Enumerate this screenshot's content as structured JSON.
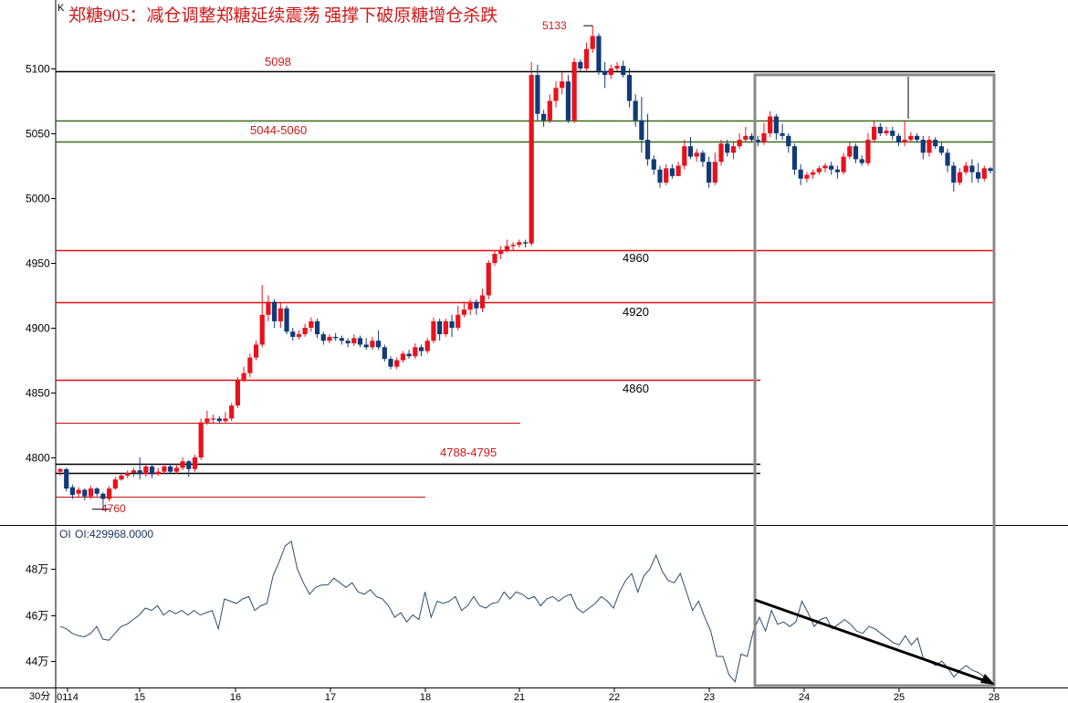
{
  "chart_data": {
    "type": "candlestick",
    "title": "郑糖905：减仓调整郑糖延续震荡 强撑下破原糖增仓杀跌",
    "corner_label": "K",
    "timeframe": "30分",
    "x_ticks": [
      "0114",
      "15",
      "16",
      "17",
      "18",
      "21",
      "22",
      "23",
      "24",
      "25",
      "28"
    ],
    "price_axis": {
      "ticks": [
        4800,
        4850,
        4900,
        4950,
        5000,
        5050,
        5100
      ]
    },
    "high_label": "5133",
    "low_label": "4760",
    "levels": [
      {
        "value": 5098,
        "label": "5098",
        "color": "#000000"
      },
      {
        "value": 5060,
        "label": "",
        "color": "#3c6b1e"
      },
      {
        "value": 5044,
        "label": "5044-5060",
        "color": "#3c6b1e"
      },
      {
        "value": 4960,
        "label": "4960",
        "color": "#e01010"
      },
      {
        "value": 4920,
        "label": "4920",
        "color": "#e01010"
      },
      {
        "value": 4860,
        "label": "4860",
        "color": "#e01010"
      },
      {
        "value": 4827,
        "label": "",
        "color": "#c01010"
      },
      {
        "value": 4795,
        "label": "",
        "color": "#000000"
      },
      {
        "value": 4788,
        "label": "4788-4795",
        "color": "#000000"
      },
      {
        "value": 4770,
        "label": "",
        "color": "#c01010"
      }
    ],
    "candles": [
      [
        4789,
        4791,
        4786,
        4792
      ],
      [
        4791,
        4776,
        4774,
        4792
      ],
      [
        4777,
        4771,
        4768,
        4779
      ],
      [
        4772,
        4775,
        4769,
        4777
      ],
      [
        4775,
        4770,
        4767,
        4776
      ],
      [
        4770,
        4776,
        4768,
        4778
      ],
      [
        4776,
        4772,
        4770,
        4777
      ],
      [
        4772,
        4768,
        4760,
        4773
      ],
      [
        4768,
        4776,
        4766,
        4778
      ],
      [
        4776,
        4783,
        4775,
        4785
      ],
      [
        4783,
        4786,
        4782,
        4788
      ],
      [
        4786,
        4788,
        4784,
        4790
      ],
      [
        4788,
        4790,
        4785,
        4792
      ],
      [
        4790,
        4787,
        4783,
        4800
      ],
      [
        4787,
        4793,
        4785,
        4795
      ],
      [
        4793,
        4787,
        4784,
        4795
      ],
      [
        4787,
        4789,
        4786,
        4792
      ],
      [
        4789,
        4793,
        4787,
        4795
      ],
      [
        4793,
        4789,
        4787,
        4795
      ],
      [
        4789,
        4792,
        4787,
        4795
      ],
      [
        4792,
        4797,
        4790,
        4800
      ],
      [
        4797,
        4791,
        4785,
        4798
      ],
      [
        4791,
        4800,
        4789,
        4802
      ],
      [
        4800,
        4827,
        4798,
        4830
      ],
      [
        4827,
        4830,
        4825,
        4836
      ],
      [
        4830,
        4830,
        4826,
        4833
      ],
      [
        4830,
        4828,
        4826,
        4832
      ],
      [
        4828,
        4830,
        4826,
        4835
      ],
      [
        4830,
        4840,
        4828,
        4842
      ],
      [
        4840,
        4860,
        4838,
        4862
      ],
      [
        4860,
        4865,
        4858,
        4870
      ],
      [
        4865,
        4877,
        4862,
        4880
      ],
      [
        4877,
        4887,
        4875,
        4890
      ],
      [
        4887,
        4910,
        4885,
        4933
      ],
      [
        4910,
        4920,
        4905,
        4925
      ],
      [
        4920,
        4905,
        4900,
        4922
      ],
      [
        4905,
        4915,
        4900,
        4920
      ],
      [
        4915,
        4897,
        4895,
        4917
      ],
      [
        4897,
        4893,
        4890,
        4900
      ],
      [
        4893,
        4895,
        4891,
        4898
      ],
      [
        4895,
        4900,
        4893,
        4903
      ],
      [
        4900,
        4905,
        4897,
        4908
      ],
      [
        4905,
        4895,
        4892,
        4907
      ],
      [
        4895,
        4890,
        4887,
        4897
      ],
      [
        4890,
        4893,
        4888,
        4895
      ],
      [
        4893,
        4892,
        4890,
        4896
      ],
      [
        4892,
        4890,
        4887,
        4894
      ],
      [
        4890,
        4888,
        4885,
        4892
      ],
      [
        4888,
        4892,
        4886,
        4895
      ],
      [
        4892,
        4887,
        4885,
        4894
      ],
      [
        4887,
        4885,
        4883,
        4892
      ],
      [
        4885,
        4890,
        4883,
        4893
      ],
      [
        4890,
        4885,
        4883,
        4898
      ],
      [
        4885,
        4876,
        4874,
        4887
      ],
      [
        4876,
        4870,
        4868,
        4878
      ],
      [
        4870,
        4875,
        4868,
        4877
      ],
      [
        4875,
        4880,
        4873,
        4882
      ],
      [
        4880,
        4878,
        4876,
        4883
      ],
      [
        4878,
        4885,
        4876,
        4888
      ],
      [
        4885,
        4882,
        4878,
        4887
      ],
      [
        4882,
        4890,
        4880,
        4892
      ],
      [
        4890,
        4905,
        4888,
        4908
      ],
      [
        4905,
        4895,
        4890,
        4907
      ],
      [
        4895,
        4905,
        4893,
        4907
      ],
      [
        4905,
        4900,
        4893,
        4910
      ],
      [
        4900,
        4910,
        4898,
        4917
      ],
      [
        4910,
        4914,
        4908,
        4920
      ],
      [
        4914,
        4920,
        4910,
        4922
      ],
      [
        4920,
        4915,
        4910,
        4922
      ],
      [
        4915,
        4925,
        4912,
        4930
      ],
      [
        4925,
        4950,
        4922,
        4952
      ],
      [
        4950,
        4957,
        4948,
        4960
      ],
      [
        4957,
        4960,
        4953,
        4963
      ],
      [
        4960,
        4963,
        4958,
        4968
      ],
      [
        4963,
        4964,
        4960,
        4966
      ],
      [
        4964,
        4966,
        4962,
        4968
      ],
      [
        4966,
        4965,
        4962,
        4968
      ],
      [
        4965,
        5095,
        4963,
        5105
      ],
      [
        5095,
        5065,
        5060,
        5103
      ],
      [
        5065,
        5060,
        5055,
        5068
      ],
      [
        5060,
        5075,
        5058,
        5080
      ],
      [
        5075,
        5085,
        5070,
        5090
      ],
      [
        5085,
        5090,
        5080,
        5097
      ],
      [
        5090,
        5060,
        5058,
        5095
      ],
      [
        5060,
        5105,
        5058,
        5108
      ],
      [
        5105,
        5100,
        5098,
        5107
      ],
      [
        5100,
        5115,
        5098,
        5120
      ],
      [
        5115,
        5125,
        5112,
        5133
      ],
      [
        5125,
        5098,
        5095,
        5127
      ],
      [
        5098,
        5095,
        5085,
        5105
      ],
      [
        5095,
        5100,
        5092,
        5103
      ],
      [
        5100,
        5102,
        5098,
        5105
      ],
      [
        5102,
        5095,
        5093,
        5106
      ],
      [
        5095,
        5075,
        5070,
        5100
      ],
      [
        5075,
        5060,
        5055,
        5080
      ],
      [
        5060,
        5045,
        5035,
        5078
      ],
      [
        5045,
        5030,
        5025,
        5065
      ],
      [
        5030,
        5022,
        5018,
        5033
      ],
      [
        5022,
        5012,
        5008,
        5025
      ],
      [
        5012,
        5023,
        5010,
        5026
      ],
      [
        5023,
        5017,
        5015,
        5026
      ],
      [
        5017,
        5025,
        5020,
        5028
      ],
      [
        5025,
        5040,
        5022,
        5045
      ],
      [
        5040,
        5032,
        5030,
        5047
      ],
      [
        5032,
        5035,
        5028,
        5038
      ],
      [
        5035,
        5028,
        5024,
        5037
      ],
      [
        5028,
        5012,
        5008,
        5032
      ],
      [
        5012,
        5028,
        5010,
        5035
      ],
      [
        5028,
        5042,
        5025,
        5045
      ],
      [
        5042,
        5035,
        5032,
        5045
      ],
      [
        5035,
        5040,
        5030,
        5044
      ],
      [
        5040,
        5045,
        5038,
        5050
      ],
      [
        5045,
        5048,
        5043,
        5055
      ],
      [
        5048,
        5045,
        5043,
        5050
      ],
      [
        5045,
        5043,
        5040,
        5048
      ],
      [
        5043,
        5050,
        5041,
        5058
      ],
      [
        5050,
        5063,
        5047,
        5067
      ],
      [
        5063,
        5050,
        5045,
        5065
      ],
      [
        5050,
        5048,
        5045,
        5057
      ],
      [
        5048,
        5040,
        5035,
        5050
      ],
      [
        5040,
        5022,
        5018,
        5042
      ],
      [
        5022,
        5015,
        5010,
        5026
      ],
      [
        5015,
        5018,
        5012,
        5020
      ],
      [
        5018,
        5020,
        5015,
        5022
      ],
      [
        5020,
        5023,
        5018,
        5025
      ],
      [
        5023,
        5025,
        5020,
        5027
      ],
      [
        5025,
        5022,
        5018,
        5028
      ],
      [
        5022,
        5020,
        5015,
        5025
      ],
      [
        5020,
        5032,
        5018,
        5035
      ],
      [
        5032,
        5040,
        5030,
        5043
      ],
      [
        5040,
        5030,
        5027,
        5042
      ],
      [
        5030,
        5027,
        5025,
        5033
      ],
      [
        5027,
        5045,
        5025,
        5050
      ],
      [
        5045,
        5055,
        5043,
        5060
      ],
      [
        5055,
        5050,
        5048,
        5058
      ],
      [
        5050,
        5052,
        5048,
        5055
      ],
      [
        5052,
        5048,
        5045,
        5055
      ],
      [
        5048,
        5043,
        5040,
        5050
      ],
      [
        5043,
        5045,
        5040,
        5060
      ],
      [
        5045,
        5048,
        5043,
        5051
      ],
      [
        5048,
        5045,
        5043,
        5050
      ],
      [
        5045,
        5035,
        5030,
        5048
      ],
      [
        5035,
        5045,
        5032,
        5048
      ],
      [
        5045,
        5040,
        5038,
        5047
      ],
      [
        5040,
        5035,
        5033,
        5043
      ],
      [
        5035,
        5025,
        5020,
        5038
      ],
      [
        5025,
        5012,
        5005,
        5028
      ],
      [
        5012,
        5020,
        5010,
        5023
      ],
      [
        5020,
        5025,
        5018,
        5028
      ],
      [
        5025,
        5020,
        5012,
        5030
      ],
      [
        5020,
        5015,
        5012,
        5027
      ],
      [
        5015,
        5023,
        5013,
        5025
      ],
      [
        5023,
        5021,
        5019,
        5024
      ]
    ],
    "oi": {
      "label": "OI",
      "value_label": "OI:429968.0000",
      "y_ticks": [
        "44万",
        "46万",
        "48万"
      ],
      "y_tick_values": [
        440000,
        460000,
        480000
      ],
      "values": [
        455000,
        454000,
        452000,
        451000,
        450500,
        452000,
        455000,
        449500,
        449000,
        452000,
        455000,
        456000,
        458000,
        460000,
        463000,
        462000,
        464000,
        460000,
        462000,
        460500,
        462000,
        460000,
        462000,
        460000,
        461000,
        462000,
        454000,
        467000,
        466000,
        465000,
        467000,
        468000,
        462000,
        464000,
        465000,
        477000,
        483000,
        490000,
        492000,
        480000,
        474000,
        469000,
        472000,
        473000,
        473000,
        476000,
        474000,
        472000,
        474000,
        470000,
        469000,
        471000,
        468000,
        467000,
        464000,
        459000,
        461000,
        457000,
        460000,
        458000,
        470000,
        459000,
        466000,
        465000,
        466000,
        468000,
        462000,
        464000,
        468000,
        464000,
        463000,
        465000,
        465500,
        470000,
        467000,
        470000,
        469000,
        467000,
        468000,
        464000,
        467000,
        468000,
        466000,
        468000,
        469000,
        463000,
        461000,
        463000,
        465000,
        468000,
        466000,
        463000,
        470000,
        475000,
        478000,
        470000,
        477000,
        480000,
        486000,
        479000,
        475000,
        474000,
        478000,
        470000,
        462000,
        466000,
        459000,
        453000,
        442000,
        442000,
        434000,
        431000,
        443000,
        442000,
        453000,
        459000,
        453000,
        462000,
        456000,
        457000,
        455000,
        457000,
        466000,
        461000,
        455000,
        458000,
        459000,
        454000,
        456000,
        458000,
        456000,
        453000,
        452000,
        455000,
        454000,
        452000,
        450000,
        448000,
        447000,
        451000,
        447000,
        450000,
        441000,
        440000,
        438000,
        440000,
        437000,
        433000,
        436000,
        438000,
        436000,
        435000,
        433000,
        430000
      ]
    },
    "annotations": [
      {
        "label": "",
        "type": "box",
        "x_from": "23",
        "x_to": "28"
      },
      {
        "label": "",
        "type": "arrow",
        "series": "oi"
      }
    ],
    "colors": {
      "up": "#e8121b",
      "down": "#103a78",
      "oi_line": "#2a4e6e",
      "box": "#8a8a8a"
    }
  }
}
